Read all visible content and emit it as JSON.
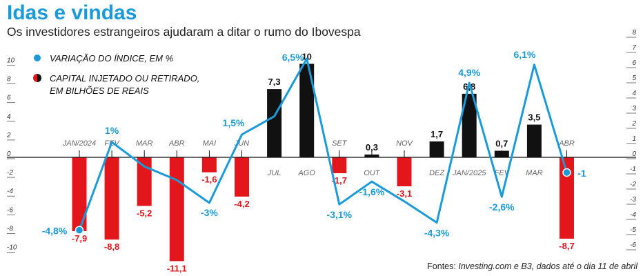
{
  "title": "Idas e vindas",
  "subtitle": "Os investidores estrangeiros ajudaram a ditar o rumo do Ibovespa",
  "legend": {
    "index": "VARIAÇÃO DO ÍNDICE, EM %",
    "capital_line1": "CAPITAL INJETADO OU RETIRADO,",
    "capital_line2": "EM BILHÕES DE REAIS"
  },
  "source": {
    "prefix": "Fontes: ",
    "text": "Investing.com e B3, dados até o dia 11 de abril"
  },
  "colors": {
    "accent": "#1a9ad8",
    "positive_bar": "#111111",
    "negative_bar": "#e3161c"
  },
  "chart_data": {
    "type": "bar",
    "categories": [
      "JAN/2024",
      "FEV",
      "MAR",
      "ABR",
      "MAI",
      "JUN",
      "JUL",
      "AGO",
      "SET",
      "OUT",
      "NOV",
      "DEZ",
      "JAN/2025",
      "FEV",
      "MAR",
      "ABR"
    ],
    "left_axis": {
      "ylim": [
        -11,
        10
      ],
      "ticks": [
        10,
        8,
        6,
        4,
        2,
        0,
        -2,
        -4,
        -6,
        -8,
        -10
      ]
    },
    "right_axis": {
      "ylim": [
        -6,
        8
      ],
      "ticks": [
        8,
        7,
        6,
        5,
        4,
        3,
        2,
        1,
        0,
        -1,
        -2,
        -3,
        -4,
        -5,
        -6
      ]
    },
    "series": [
      {
        "values": [
          -7.9,
          -8.8,
          -5.2,
          -11.1,
          -1.6,
          -4.2,
          7.3,
          10,
          -1.7,
          0.3,
          -3.1,
          1.7,
          6.8,
          0.7,
          3.5,
          -8.7
        ],
        "labels": [
          "-7,9",
          "-8,8",
          "-5,2",
          "-11,1",
          "-1,6",
          "-4,2",
          "7,3",
          "10",
          "-1,7",
          "0,3",
          "-3,1",
          "1,7",
          "6,8",
          "0,7",
          "3,5",
          "-8,7"
        ]
      },
      {
        "values": [
          -4.8,
          1,
          -0.6,
          -1.5,
          -3,
          1.5,
          2.7,
          6.5,
          -3.1,
          -1.6,
          -2.9,
          -4.3,
          4.9,
          -2.6,
          6.1,
          -1
        ],
        "labels": [
          "-4,8%",
          "1%",
          "",
          "",
          "-3%",
          "1,5%",
          "",
          "6,5%",
          "-3,1%",
          "-1,6%",
          "",
          "-4,3%",
          "4,9%",
          "-2,6%",
          "6,1%",
          "-1"
        ]
      }
    ]
  }
}
